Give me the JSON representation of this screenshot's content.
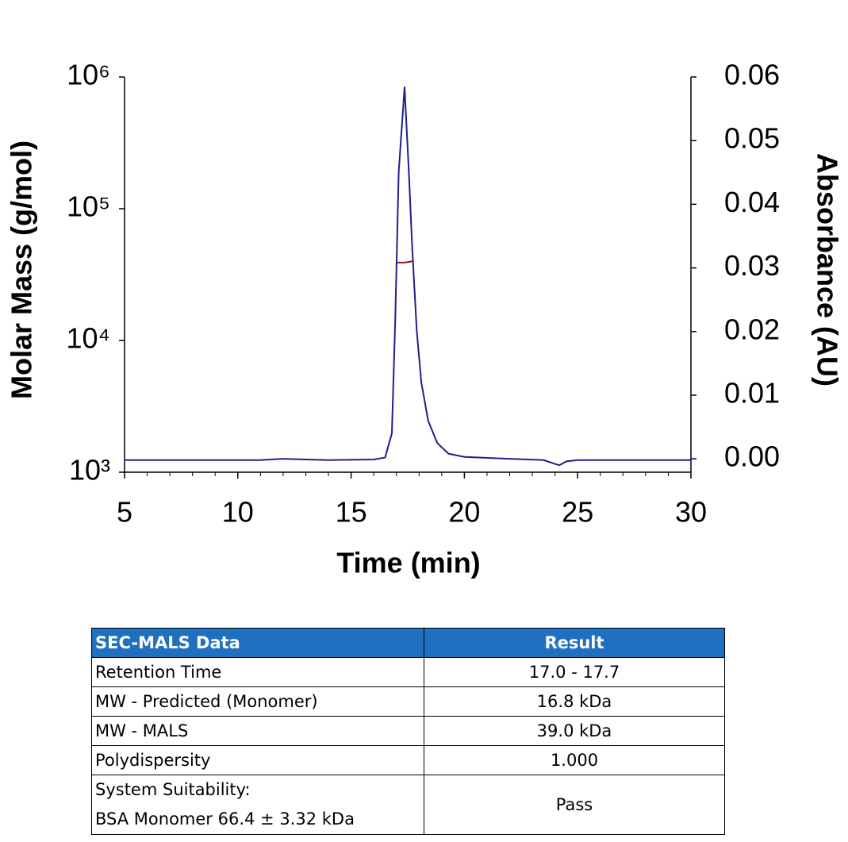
{
  "chart_data": {
    "type": "line",
    "xlabel": "Time (min)",
    "ylabel": "Molar Mass (g/mol)",
    "y2label": "Absorbance (AU)",
    "xlim": [
      5,
      30
    ],
    "xticks": [
      5,
      10,
      15,
      20,
      25,
      30
    ],
    "xminorticks": [
      6,
      7,
      8,
      9,
      11,
      12,
      13,
      14,
      16,
      17,
      18,
      19,
      21,
      22,
      23,
      24,
      26,
      27,
      28,
      29
    ],
    "ylog": true,
    "ylim": [
      1000,
      1000000
    ],
    "yticks": [
      {
        "value": 1000,
        "label": "10³"
      },
      {
        "value": 10000,
        "label": "10⁴"
      },
      {
        "value": 100000,
        "label": "10⁵"
      },
      {
        "value": 1000000,
        "label": "10⁶"
      }
    ],
    "y2lim": [
      -0.0021,
      0.06
    ],
    "y2ticks": [
      {
        "value": 0,
        "label": "0.00"
      },
      {
        "value": 0.01,
        "label": "0.01"
      },
      {
        "value": 0.02,
        "label": "0.02"
      },
      {
        "value": 0.03,
        "label": "0.03"
      },
      {
        "value": 0.04,
        "label": "0.04"
      },
      {
        "value": 0.05,
        "label": "0.05"
      },
      {
        "value": 0.06,
        "label": "0.06"
      }
    ],
    "series": [
      {
        "axis": "y2",
        "color": "#1f1f8c",
        "x": [
          5,
          8,
          11,
          12,
          14,
          16,
          16.5,
          16.8,
          16.95,
          17.1,
          17.36,
          17.55,
          17.7,
          17.9,
          18.1,
          18.4,
          18.8,
          19.3,
          20,
          22,
          23.5,
          24.0,
          24.2,
          24.5,
          25,
          28,
          30
        ],
        "values": [
          -0.0002,
          -0.0002,
          -0.0002,
          0.0,
          -0.0002,
          -0.0001,
          0.0002,
          0.004,
          0.022,
          0.045,
          0.0584,
          0.045,
          0.033,
          0.02,
          0.012,
          0.006,
          0.0025,
          0.0008,
          0.0003,
          0.0,
          -0.0002,
          -0.0008,
          -0.001,
          -0.0004,
          -0.0002,
          -0.0002,
          -0.0002
        ]
      },
      {
        "axis": "y",
        "color": "#8b1a1a",
        "x": [
          17.0,
          17.35,
          17.75
        ],
        "values": [
          39000,
          39000,
          40000
        ]
      }
    ]
  },
  "table": {
    "header": [
      "SEC-MALS Data",
      "Result"
    ],
    "rows": [
      [
        "Retention Time",
        "17.0 - 17.7"
      ],
      [
        "MW - Predicted (Monomer)",
        "16.8 kDa"
      ],
      [
        "MW - MALS",
        "39.0 kDa"
      ],
      [
        "Polydispersity",
        "1.000"
      ],
      [
        [
          "System Suitability:",
          "BSA Monomer 66.4 ± 3.32 kDa"
        ],
        "Pass"
      ]
    ]
  }
}
